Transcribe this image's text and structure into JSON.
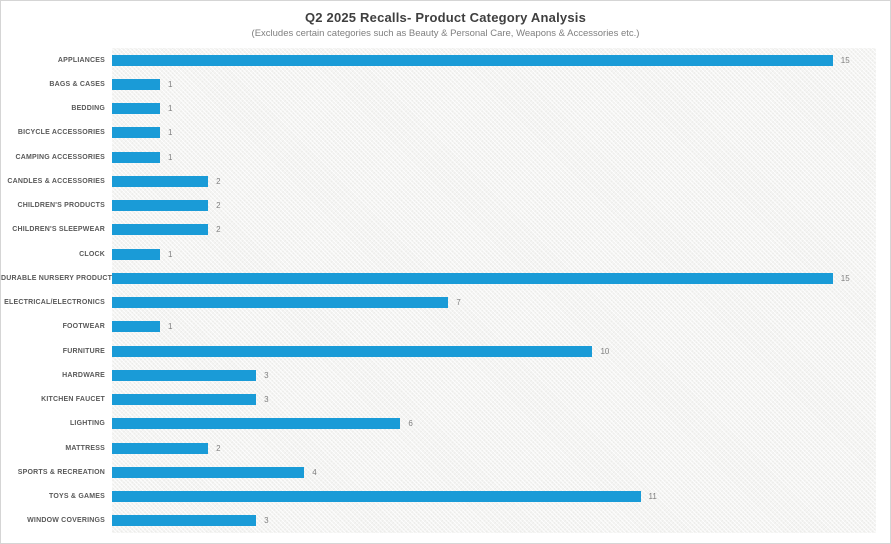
{
  "page": {
    "background": "#ffffff",
    "border_color": "#d5d5d5"
  },
  "chart_data": {
    "type": "bar",
    "orientation": "horizontal",
    "title": "Q2 2025 Recalls- Product Category Analysis",
    "subtitle": "(Excludes certain categories such as Beauty & Personal Care, Weapons & Accessories etc.)",
    "categories": [
      "APPLIANCES",
      "BAGS & CASES",
      "BEDDING",
      "BICYCLE ACCESSORIES",
      "CAMPING ACCESSORIES",
      "CANDLES & ACCESSORIES",
      "CHILDREN'S PRODUCTS",
      "CHILDREN'S SLEEPWEAR",
      "CLOCK",
      "DURABLE NURSERY PRODUCT",
      "ELECTRICAL/ELECTRONICS",
      "FOOTWEAR",
      "FURNITURE",
      "HARDWARE",
      "KITCHEN FAUCET",
      "LIGHTING",
      "MATTRESS",
      "SPORTS & RECREATION",
      "TOYS & GAMES",
      "WINDOW COVERINGS"
    ],
    "values": [
      15,
      1,
      1,
      1,
      1,
      2,
      2,
      2,
      1,
      15,
      7,
      1,
      10,
      3,
      3,
      6,
      2,
      4,
      11,
      3
    ],
    "xlim": [
      0,
      15.9
    ],
    "grid": false,
    "legend": false,
    "data_labels": true,
    "bar_color": "#1a9bd7",
    "category_label_color": "#595959",
    "value_label_color": "#7f7f7f",
    "title_color": "#3f3f3f",
    "subtitle_color": "#7f7f7f",
    "plot_background": "#f4f4f2 with subtle diagonal crosshatch texture"
  }
}
